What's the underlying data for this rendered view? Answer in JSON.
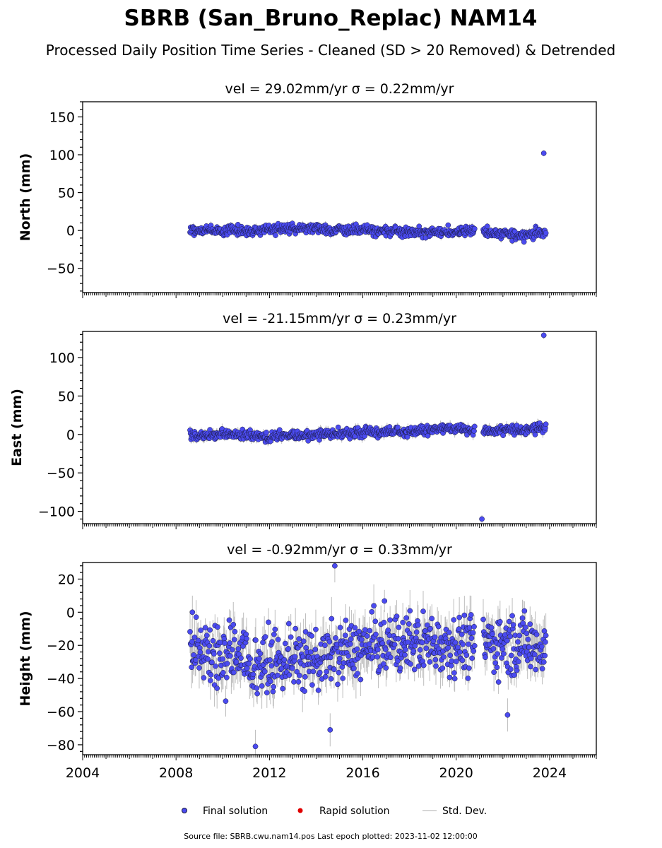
{
  "chart_data": {
    "type": "scatter",
    "title": "SBRB (San_Bruno_Replac) NAM14",
    "subtitle": "Processed Daily Position Time Series - Cleaned (SD > 20 Removed) & Detrended",
    "footer": "Source file: SBRB.cwu.nam14.pos  Last epoch plotted: 2023-11-02 12:00:00",
    "colors": {
      "final": "#4b4bf0",
      "rapid": "#e00000",
      "std": "#bdbdbd",
      "edge": "#1a1a40"
    },
    "legend": {
      "placement": "bottom-center",
      "entries": [
        "Final solution",
        "Rapid solution",
        "Std. Dev."
      ]
    },
    "x": {
      "range": [
        2004,
        2026
      ],
      "ticks": [
        2004,
        2008,
        2012,
        2016,
        2020,
        2024
      ],
      "tick_labels": [
        "2004",
        "2008",
        "2012",
        "2016",
        "2020",
        "2024"
      ],
      "data_range": [
        2008.6,
        2023.84
      ],
      "data_gap": [
        2020.8,
        2021.15
      ]
    },
    "panels": [
      {
        "label": "North (mm)",
        "stats": "vel = 29.02mm/yr   σ = 0.22mm/yr",
        "ylim": [
          -82,
          170
        ],
        "yticks": [
          -50,
          0,
          50,
          100,
          150
        ],
        "ytick_labels": [
          "−50",
          "0",
          "50",
          "100",
          "150"
        ],
        "trend_knots": [
          [
            2008.6,
            0
          ],
          [
            2011.5,
            0
          ],
          [
            2013.3,
            4
          ],
          [
            2015,
            1
          ],
          [
            2017.5,
            -2
          ],
          [
            2019.5,
            -3
          ],
          [
            2020.8,
            2
          ],
          [
            2021.2,
            -3
          ],
          [
            2022.5,
            -6
          ],
          [
            2023.84,
            -3
          ]
        ],
        "spread": 3.2,
        "std_spread": 4,
        "outliers": [
          {
            "x": 2023.75,
            "y": 102
          }
        ]
      },
      {
        "label": "East (mm)",
        "stats": "vel = -21.15mm/yr   σ = 0.23mm/yr",
        "ylim": [
          -116,
          134
        ],
        "yticks": [
          -100,
          -50,
          0,
          50,
          100
        ],
        "ytick_labels": [
          "−100",
          "−50",
          "0",
          "50",
          "100"
        ],
        "trend_knots": [
          [
            2008.6,
            -1
          ],
          [
            2011,
            0
          ],
          [
            2012,
            -3
          ],
          [
            2014,
            0
          ],
          [
            2016,
            2
          ],
          [
            2018,
            4
          ],
          [
            2020,
            8
          ],
          [
            2020.8,
            6
          ],
          [
            2021.2,
            4
          ],
          [
            2022.5,
            6
          ],
          [
            2023.84,
            9
          ]
        ],
        "spread": 3.2,
        "std_spread": 5,
        "outliers": [
          {
            "x": 2021.1,
            "y": -110
          },
          {
            "x": 2023.75,
            "y": 129
          }
        ]
      },
      {
        "label": "Height (mm)",
        "stats": "vel = -0.92mm/yr   σ = 0.33mm/yr",
        "ylim": [
          -86,
          30
        ],
        "yticks": [
          -80,
          -60,
          -40,
          -20,
          0,
          20
        ],
        "ytick_labels": [
          "−80",
          "−60",
          "−40",
          "−20",
          "0",
          "20"
        ],
        "trend_knots": [
          [
            2008.6,
            -25
          ],
          [
            2011.5,
            -30
          ],
          [
            2014,
            -28
          ],
          [
            2016.5,
            -20
          ],
          [
            2019,
            -18
          ],
          [
            2020.8,
            -20
          ],
          [
            2021.2,
            -18
          ],
          [
            2023.84,
            -20
          ]
        ],
        "spread": 9,
        "std_spread": 10,
        "outliers": [
          {
            "x": 2011.4,
            "y": -81
          },
          {
            "x": 2014.8,
            "y": 28
          },
          {
            "x": 2014.6,
            "y": -71
          },
          {
            "x": 2022.2,
            "y": -62
          },
          {
            "x": 2008.7,
            "y": 0
          }
        ]
      }
    ]
  }
}
